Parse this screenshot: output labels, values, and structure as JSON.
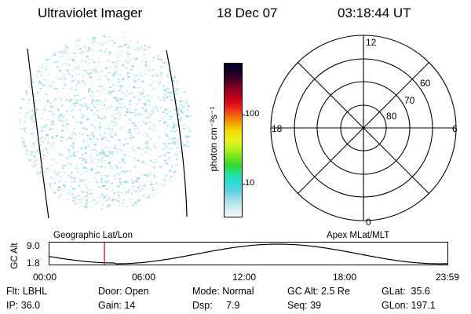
{
  "header": {
    "instrument": "Ultraviolet Imager",
    "date": "18 Dec 07",
    "time": "03:18:44 UT"
  },
  "colorbar": {
    "unit_label": "photon cm⁻²s⁻¹",
    "tick_labels": [
      "100",
      "10"
    ],
    "colors": [
      "#000033",
      "#1a0020",
      "#4b0028",
      "#8b0020",
      "#c00018",
      "#e81818",
      "#f06010",
      "#f0a000",
      "#f0e000",
      "#e8f020",
      "#b8f020",
      "#70e820",
      "#30d838",
      "#20e0a0",
      "#30d8d8",
      "#60d0e0",
      "#a0e0e8",
      "#d0eef0",
      "#f4f8f8"
    ]
  },
  "left_panel": {
    "label": "Geographic Lat/Lon",
    "point_color": "#8fdada"
  },
  "polar_plot": {
    "label": "Apex MLat/MLT",
    "mlt_labels": {
      "top": "12",
      "right": "6",
      "bottom": "0",
      "left": "18"
    },
    "lat_labels": [
      "60",
      "70",
      "80"
    ]
  },
  "altitude_plot": {
    "ylabel": "GC Alt",
    "ytick_top": "9.0",
    "ytick_bottom": "1.8",
    "xtick_labels": [
      "00:00",
      "06:00",
      "12:00",
      "18:00",
      "23:59"
    ],
    "marker_color": "#d00000",
    "marker_hour": 3.31
  },
  "footer": {
    "row1": [
      "Flt: LBHL",
      "Door: Open",
      "Mode: Normal",
      "GC Alt: 2.5 Re",
      "GLat:  35.6"
    ],
    "row2": [
      "IP: 36.0",
      "Gain: 14",
      "Dsp:     7.9",
      "Seq: 39",
      "GLon: 197.1"
    ]
  }
}
